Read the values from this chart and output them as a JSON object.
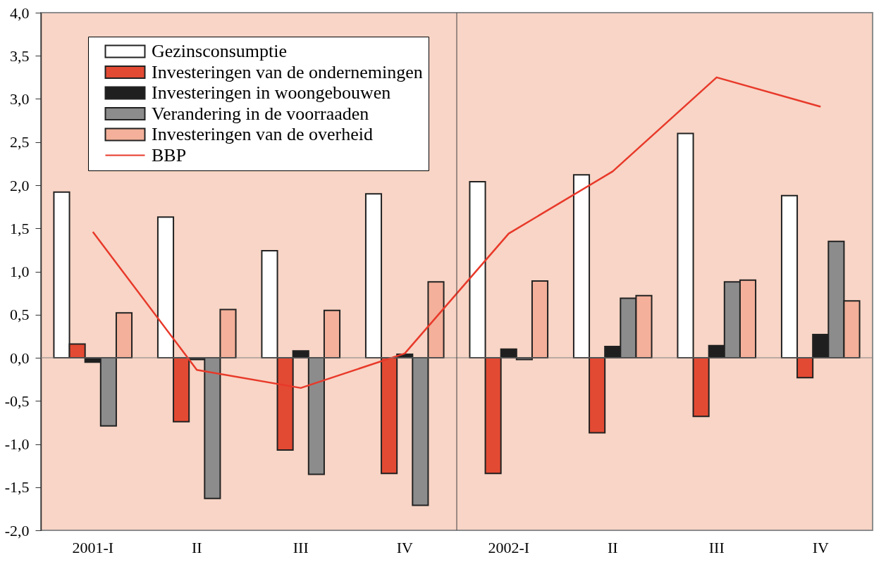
{
  "chart_data": {
    "type": "bar",
    "categories": [
      "2001-I",
      "II",
      "III",
      "IV",
      "2002-I",
      "II",
      "III",
      "IV"
    ],
    "series": [
      {
        "name": "Gezinsconsumptie",
        "color": "#ffffff",
        "values": [
          1.92,
          1.63,
          1.24,
          1.9,
          2.04,
          2.12,
          2.6,
          1.88
        ]
      },
      {
        "name": "Investeringen van de ondernemingen",
        "color": "#e34a33",
        "values": [
          0.16,
          -0.74,
          -1.07,
          -1.34,
          -1.34,
          -0.87,
          -0.68,
          -0.23
        ]
      },
      {
        "name": "Investeringen in woongebouwen",
        "color": "#1f1f1f",
        "values": [
          -0.05,
          -0.02,
          0.08,
          0.04,
          0.1,
          0.13,
          0.14,
          0.27
        ]
      },
      {
        "name": "Verandering in de voorraaden",
        "color": "#8c8c8c",
        "values": [
          -0.79,
          -1.63,
          -1.35,
          -1.71,
          -0.02,
          0.69,
          0.88,
          1.35
        ]
      },
      {
        "name": "Investeringen van de overheid",
        "color": "#f4b09a",
        "values": [
          0.52,
          0.56,
          0.55,
          0.88,
          0.89,
          0.72,
          0.9,
          0.66
        ]
      },
      {
        "name": "BBP",
        "type": "line",
        "color": "#e8392a",
        "values": [
          1.46,
          -0.14,
          -0.35,
          0.05,
          1.44,
          2.16,
          3.25,
          2.91
        ]
      }
    ],
    "ylim": [
      -2,
      4
    ],
    "yticks": [
      {
        "value": -2,
        "label": "-2,0"
      },
      {
        "value": -1.5,
        "label": "-1,5"
      },
      {
        "value": -1,
        "label": "-1,0"
      },
      {
        "value": -0.5,
        "label": "-0,5"
      },
      {
        "value": 0,
        "label": "0,0"
      },
      {
        "value": 0.5,
        "label": "0,5"
      },
      {
        "value": 1,
        "label": "1,0"
      },
      {
        "value": 1.5,
        "label": "1,5"
      },
      {
        "value": 2,
        "label": "2,0"
      },
      {
        "value": 2.5,
        "label": "2,5"
      },
      {
        "value": 3,
        "label": "3,0"
      },
      {
        "value": 3.5,
        "label": "3,5"
      },
      {
        "value": 4,
        "label": "4,0"
      }
    ],
    "legend": "top left",
    "ref_lines": [
      {
        "axis": "y",
        "value": 0,
        "color": "#808080"
      },
      {
        "axis": "x",
        "value": "2002-I",
        "color": "#404040"
      }
    ]
  }
}
